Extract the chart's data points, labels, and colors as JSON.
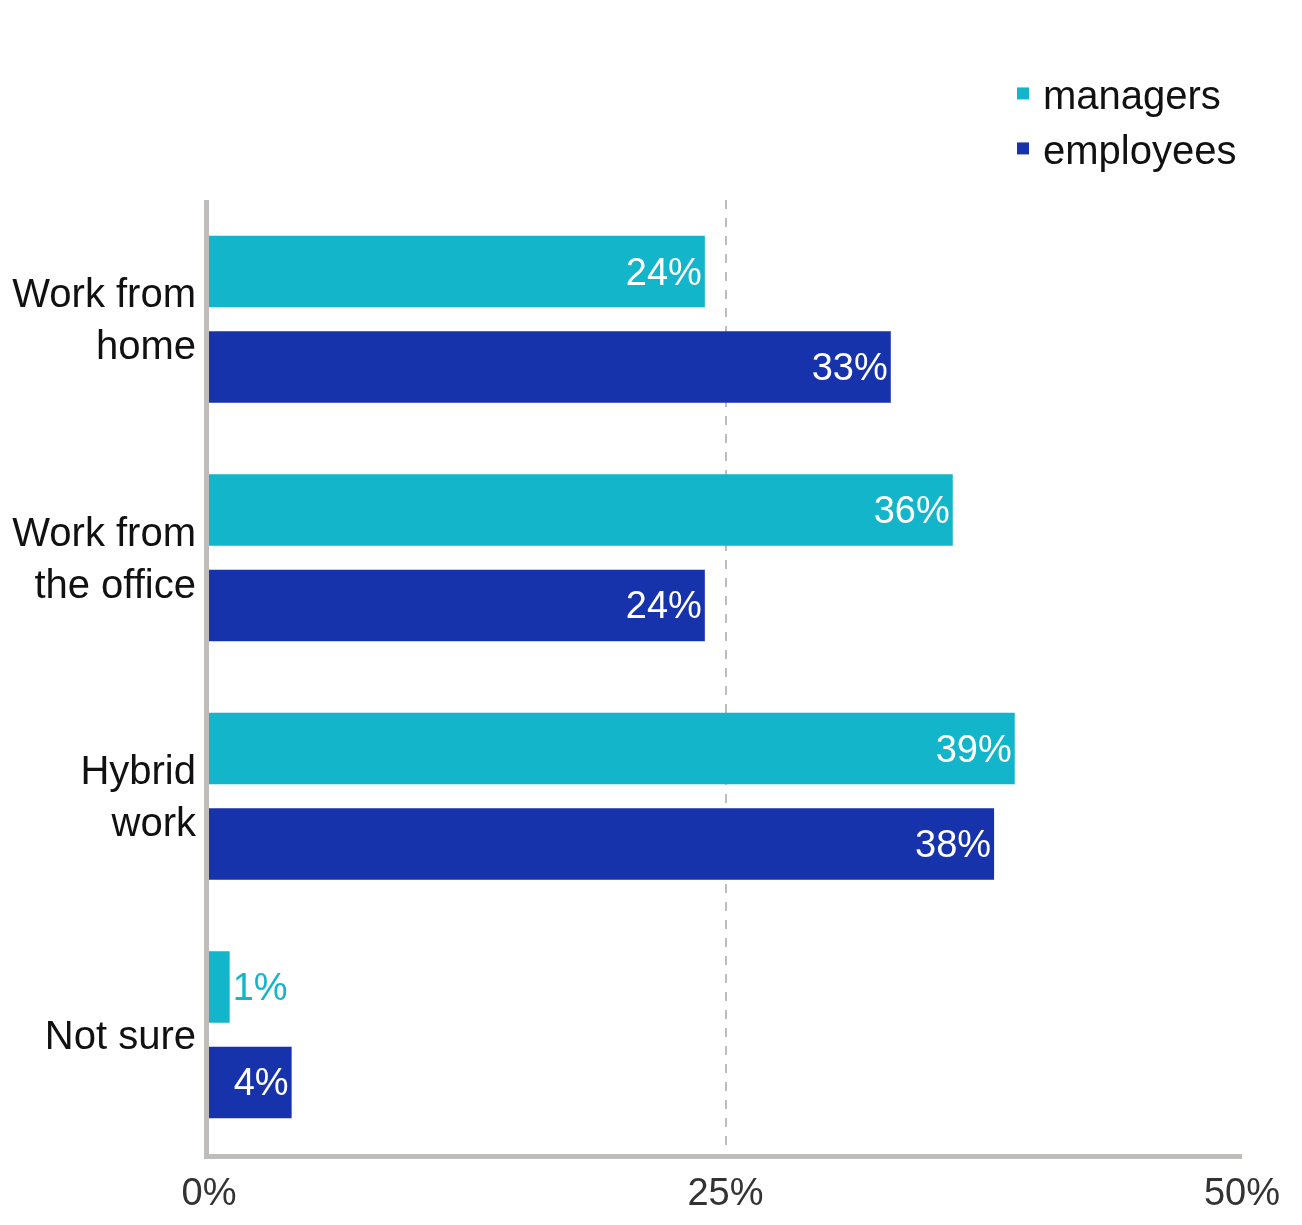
{
  "chart_data": {
    "type": "bar",
    "orientation": "horizontal",
    "categories": [
      "Work from home",
      "Work from the office",
      "Hybrid work",
      "Not sure"
    ],
    "series": [
      {
        "name": "managers",
        "color": "#12b5c9",
        "values": [
          24,
          36,
          39,
          1
        ],
        "value_labels": [
          "24%",
          "36%",
          "39%",
          "1%"
        ]
      },
      {
        "name": "employees",
        "color": "#1733ab",
        "values": [
          33,
          24,
          38,
          4
        ],
        "value_labels": [
          "33%",
          "24%",
          "38%",
          "4%"
        ]
      }
    ],
    "xlim": [
      0,
      50
    ],
    "xticks": [
      {
        "value": 0,
        "label": "0%"
      },
      {
        "value": 25,
        "label": "25%"
      },
      {
        "value": 50,
        "label": "50%"
      }
    ],
    "grid": "x",
    "legend": "top right"
  }
}
